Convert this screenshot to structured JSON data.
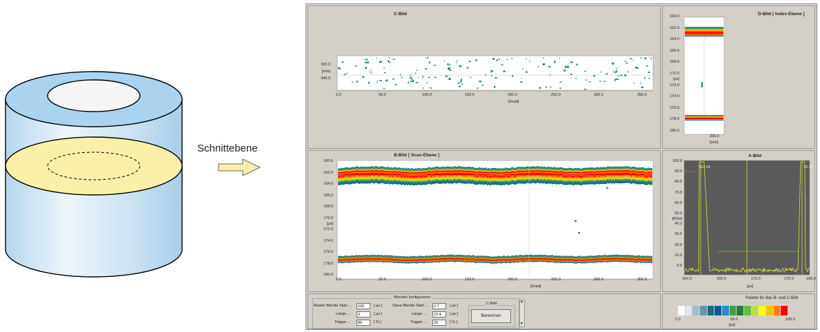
{
  "annotation": {
    "label": "Schnittebene"
  },
  "c_bild": {
    "title": "C-Bild",
    "y_ticks": [
      "320.0",
      "[mm]",
      "340.0"
    ],
    "x_ticks": [
      "0.0",
      "50.0",
      "100.0",
      "150.0",
      "200.0",
      "250.0",
      "300.0",
      "350.0"
    ],
    "x_unit": "[Grad]"
  },
  "d_bild": {
    "title": "D-Bild [ Index-Ebene ]",
    "y_ticks": [
      "160.0",
      "162.0",
      "164.0",
      "166.0",
      "168.0",
      "170.0",
      "[µs]",
      "172.0",
      "174.0",
      "176.0",
      "178.0",
      "180.0"
    ],
    "x_ticks": [
      "330.0"
    ],
    "x_unit": "[mm]"
  },
  "b_bild": {
    "title": "B-Bild [ Scan-Ebene ]",
    "y_ticks": [
      "160.0",
      "162.0",
      "164.0",
      "166.0",
      "168.0",
      "170.0",
      "[µs]",
      "172.0",
      "174.0",
      "176.0",
      "178.0",
      "180.0"
    ],
    "x_ticks": [
      "0.0",
      "50.0",
      "100.0",
      "150.0",
      "200.0",
      "250.0",
      "300.0",
      "350.0"
    ],
    "x_unit": "[Grad]"
  },
  "a_bild": {
    "title": "A-Bild",
    "y_ticks": [
      "100.0",
      "90.0",
      "80.0",
      "70.0",
      "60.0",
      "50.0",
      "[BSH]",
      "40.0",
      "30.0",
      "20.0",
      "10.0",
      "0.0"
    ],
    "x_ticks": [
      "160.0",
      "165.0",
      "170.0",
      "175.0",
      "180.0"
    ],
    "x_unit": "[µs]",
    "cursor_left": "162.04",
    "cursor_right": "18.36"
  },
  "controls": {
    "group_title": "Blenden konfigurieren",
    "master_start_label": "Master Blende Start ...",
    "master_start_value": "160",
    "laenge_label": "Länge ...",
    "master_laenge_value": "3",
    "trigger_label": "Trigger ...",
    "master_trigger_value": "90",
    "unit_us": "[ µs ]",
    "unit_pct": "[ % ]",
    "slave_start_label": "Slave Blende Start ...",
    "slave_start_value": "2.7",
    "slave_laenge_value": "12.4",
    "slave_trigger_value": "20",
    "cbild_group": "C-Bild",
    "berechnen_label": "Berechnen",
    "scroll_up": "▲",
    "scroll_down": "▼"
  },
  "palette": {
    "title": "Palette für das B- und C-Bild",
    "colors": [
      "#ffffff",
      "#dfe9ef",
      "#9fc0cf",
      "#5f98ae",
      "#0f6d86",
      "#0e5b9c",
      "#1f8fd0",
      "#3f9f4f",
      "#1f7f3f",
      "#5fbf3f",
      "#bfdf3f",
      "#ffff00",
      "#ffbf00",
      "#ff7f00",
      "#ff0000"
    ],
    "ticks": [
      "0.0",
      "50.0",
      "100.0"
    ],
    "unit": "[µs]"
  }
}
